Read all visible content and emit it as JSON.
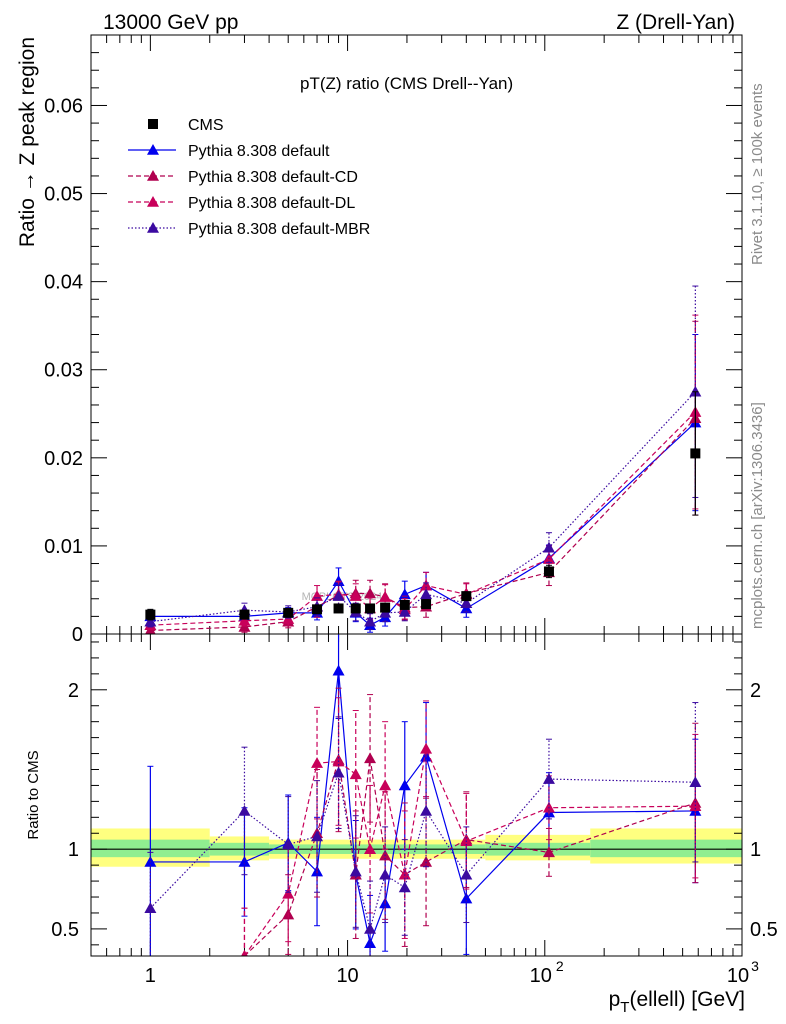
{
  "header": {
    "left": "13000 GeV pp",
    "right": "Z (Drell-Yan)"
  },
  "side_labels": {
    "rivet": "Rivet 3.1.10, ≥ 100k events",
    "mcplots": "mcplots.cern.ch [arXiv:1306.3436]"
  },
  "watermark": "MCPLOTS 2024",
  "chart_data": [
    {
      "type": "scatter",
      "panel": "main",
      "title": "pT(Z) ratio (CMS Drell--Yan)",
      "ylabel": "Ratio → Z peak region",
      "xlabel": "p_T(ellell) [GeV]",
      "xscale": "log",
      "xlim": [
        0.5,
        1000
      ],
      "ylim": [
        0,
        0.068
      ],
      "yticks": [
        0,
        0.01,
        0.02,
        0.03,
        0.04,
        0.05,
        0.06
      ],
      "ytick_labels": [
        "0",
        "0.01",
        "0.02",
        "0.03",
        "0.04",
        "0.05",
        "0.06"
      ],
      "legend_position": "top-left",
      "series": [
        {
          "name": "CMS",
          "style": "data",
          "color": "#000000",
          "x": [
            1,
            3,
            5,
            7,
            9,
            11,
            13,
            15.5,
            19.5,
            25,
            40,
            105,
            580
          ],
          "y": [
            0.0022,
            0.0022,
            0.0024,
            0.0028,
            0.0029,
            0.0029,
            0.0029,
            0.003,
            0.0033,
            0.0034,
            0.0043,
            0.0071,
            0.0205
          ],
          "err": [
            0.0006,
            0.0005,
            0.0004,
            0.0004,
            0.0004,
            0.0004,
            0.0004,
            0.0004,
            0.0004,
            0.0004,
            0.0004,
            0.0007,
            0.007
          ]
        },
        {
          "name": "Pythia 8.308 default",
          "style": "solid",
          "color": "#0000ee",
          "x": [
            1,
            3,
            5,
            7,
            9,
            11,
            13,
            15.5,
            19.5,
            25,
            40,
            105,
            580
          ],
          "y": [
            0.002,
            0.002,
            0.0024,
            0.0024,
            0.006,
            0.0024,
            0.001,
            0.0019,
            0.0045,
            0.0055,
            0.0029,
            0.0086,
            0.024
          ],
          "err": [
            0.0007,
            0.0006,
            0.0006,
            0.0008,
            0.0015,
            0.001,
            0.0008,
            0.001,
            0.0015,
            0.0015,
            0.001,
            0.0015,
            0.01
          ]
        },
        {
          "name": "Pythia 8.308 default-CD",
          "style": "dashed",
          "color": "#b0004f",
          "x": [
            1,
            3,
            5,
            7,
            9,
            11,
            13,
            15.5,
            19.5,
            25,
            40,
            105,
            580
          ],
          "y": [
            0.0004,
            0.0008,
            0.0014,
            0.0031,
            0.0044,
            0.0046,
            0.0046,
            0.0042,
            0.003,
            0.0031,
            0.0046,
            0.007,
            0.0245
          ],
          "err": [
            0.0004,
            0.0006,
            0.0007,
            0.0012,
            0.0015,
            0.0015,
            0.0015,
            0.0015,
            0.0013,
            0.0012,
            0.0012,
            0.0015,
            0.011
          ]
        },
        {
          "name": "Pythia 8.308 default-DL",
          "style": "dashed",
          "color": "#c8005a",
          "x": [
            1,
            3,
            5,
            7,
            9,
            11,
            13,
            15.5,
            19.5,
            25,
            40,
            105,
            580
          ],
          "y": [
            0.001,
            0.0015,
            0.0017,
            0.0043,
            0.0045,
            0.0043,
            0.0029,
            0.0042,
            0.0028,
            0.0055,
            0.0045,
            0.0085,
            0.0252
          ],
          "err": [
            0.0005,
            0.0006,
            0.0007,
            0.0012,
            0.0015,
            0.0014,
            0.0012,
            0.0014,
            0.0012,
            0.0015,
            0.0012,
            0.0015,
            0.011
          ]
        },
        {
          "name": "Pythia 8.308 default-MBR",
          "style": "dotted",
          "color": "#3b0aa0",
          "x": [
            1,
            3,
            5,
            7,
            9,
            11,
            13,
            15.5,
            19.5,
            25,
            40,
            105,
            580
          ],
          "y": [
            0.0014,
            0.0027,
            0.0025,
            0.0031,
            0.0043,
            0.0025,
            0.0014,
            0.0024,
            0.0025,
            0.0045,
            0.0035,
            0.0098,
            0.0275
          ],
          "err": [
            0.0006,
            0.0008,
            0.0007,
            0.001,
            0.0013,
            0.001,
            0.0009,
            0.001,
            0.001,
            0.0013,
            0.001,
            0.0017,
            0.012
          ]
        }
      ]
    },
    {
      "type": "scatter",
      "panel": "ratio",
      "ylabel": "Ratio to CMS",
      "xlabel": "p_T(ellell) [GeV]",
      "xscale": "log",
      "xlim": [
        0.5,
        1000
      ],
      "ylim": [
        0.33,
        2.35
      ],
      "yticks": [
        0.5,
        1,
        2
      ],
      "ytick_labels": [
        "0.5",
        "1",
        "2"
      ],
      "xtick_labels": [
        "1",
        "10",
        "10",
        "2",
        "10",
        "3"
      ],
      "band_inner_color": "#90ee90",
      "band_outer_color": "#ffff80",
      "band": [
        {
          "x0": 0.5,
          "x1": 2,
          "inner": [
            0.95,
            1.06
          ],
          "outer": [
            0.89,
            1.13
          ]
        },
        {
          "x0": 2,
          "x1": 4,
          "inner": [
            0.96,
            1.04
          ],
          "outer": [
            0.93,
            1.08
          ]
        },
        {
          "x0": 4,
          "x1": 50,
          "inner": [
            0.97,
            1.03
          ],
          "outer": [
            0.94,
            1.06
          ]
        },
        {
          "x0": 50,
          "x1": 170,
          "inner": [
            0.96,
            1.04
          ],
          "outer": [
            0.93,
            1.09
          ]
        },
        {
          "x0": 170,
          "x1": 1000,
          "inner": [
            0.95,
            1.06
          ],
          "outer": [
            0.91,
            1.13
          ]
        }
      ],
      "series": [
        {
          "name": "Pythia 8.308 default",
          "style": "solid",
          "color": "#0000ee",
          "x": [
            1,
            3,
            5,
            7,
            9,
            11,
            13,
            15.5,
            19.5,
            25,
            40,
            105,
            580
          ],
          "y": [
            0.92,
            0.92,
            1.04,
            0.86,
            2.12,
            0.84,
            0.41,
            0.66,
            1.4,
            1.58,
            0.69,
            1.23,
            1.24
          ],
          "err": [
            0.6,
            0.34,
            0.3,
            0.34,
            0.3,
            0.34,
            0.3,
            0.3,
            0.4,
            0.34,
            0.35,
            0.25,
            0.45
          ]
        },
        {
          "name": "Pythia 8.308 default-CD",
          "style": "dashed",
          "color": "#b0004f",
          "x": [
            3,
            5,
            7,
            9,
            11,
            13,
            15.5,
            19.5,
            25,
            40,
            105,
            580
          ],
          "y": [
            0.33,
            0.59,
            1.1,
            1.56,
            0.84,
            1.57,
            0.96,
            0.84,
            0.92,
            1.06,
            0.98,
            1.29
          ],
          "err": [
            0.3,
            0.25,
            0.4,
            0.45,
            0.4,
            0.4,
            0.4,
            0.45,
            0.4,
            0.3,
            0.15,
            0.5
          ]
        },
        {
          "name": "Pythia 8.308 default-DL",
          "style": "dashed",
          "color": "#c8005a",
          "x": [
            3,
            5,
            7,
            9,
            11,
            13,
            15.5,
            19.5,
            25,
            40,
            105,
            580
          ],
          "y": [
            0.33,
            0.72,
            1.54,
            1.55,
            1.47,
            1.0,
            1.4,
            0.84,
            1.63,
            1.05,
            1.26,
            1.27
          ],
          "err": [
            0.3,
            0.3,
            0.35,
            0.4,
            0.4,
            0.4,
            0.4,
            0.4,
            0.3,
            0.3,
            0.2,
            0.45
          ]
        },
        {
          "name": "Pythia 8.308 default-MBR",
          "style": "dotted",
          "color": "#3b0aa0",
          "x": [
            1,
            3,
            5,
            7,
            9,
            11,
            13,
            15.5,
            19.5,
            25,
            40,
            105,
            580
          ],
          "y": [
            0.63,
            1.24,
            1.03,
            1.08,
            1.48,
            0.86,
            0.5,
            0.84,
            0.76,
            1.24,
            0.84,
            1.44,
            1.42
          ],
          "err": [
            0.35,
            0.4,
            0.3,
            0.35,
            0.35,
            0.35,
            0.3,
            0.3,
            0.3,
            0.35,
            0.3,
            0.25,
            0.5
          ]
        }
      ]
    }
  ]
}
